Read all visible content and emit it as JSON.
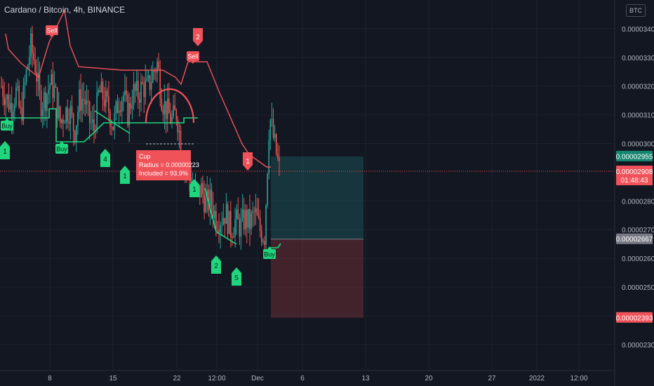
{
  "header": {
    "title": "Cardano / Bitcoin, 4h, BINANCE",
    "currency_button": "BTC"
  },
  "price_tags": {
    "target": "0.00002955",
    "current": "0.00002908",
    "countdown": "01:48:43",
    "entry": "0.00002667",
    "stop": "0.00002393"
  },
  "annotation": {
    "line1": "Cup",
    "line2": "Radius = 0.00000223",
    "line3": "Included = 93.9%"
  },
  "colors": {
    "background": "#131722",
    "bull": "#26a69a",
    "bear": "#ef5350",
    "buy_signal": "#1fd67e",
    "sell_signal": "#f0525a",
    "grid": "#1e2230",
    "text": "#b2b5be"
  },
  "chart_data": {
    "type": "candlestick",
    "title": "Cardano / Bitcoin, 4h, BINANCE",
    "y_axis": {
      "range": [
        2.24e-05,
        3.49e-05
      ],
      "ticks": [
        "0.00003400",
        "0.00003300",
        "0.00003200",
        "0.00003100",
        "0.00003000",
        "0.00002800",
        "0.00002700",
        "0.00002600",
        "0.00002500",
        "0.00002400",
        "0.00002300"
      ]
    },
    "x_axis": {
      "ticks": [
        "8",
        "15",
        "22",
        "12:00",
        "Dec",
        "6",
        "13",
        "20",
        "27",
        "2022",
        "12:00"
      ]
    },
    "close_path": [
      3.2e-05,
      3.16e-05,
      3.13e-05,
      3.18e-05,
      3.09e-05,
      3.23e-05,
      3.34e-05,
      3.27e-05,
      3.14e-05,
      3.16e-05,
      3.21e-05,
      3.18e-05,
      3.07e-05,
      3.11e-05,
      3.12e-05,
      3.04e-05,
      3.15e-05,
      3.16e-05,
      3.08e-05,
      3.05e-05,
      3.18e-05,
      3.16e-05,
      3.12e-05,
      3.06e-05,
      3.15e-05,
      3.17e-05,
      3.1e-05,
      3.18e-05,
      3.17e-05,
      3.2e-05,
      3.19e-05,
      3.24e-05,
      3.28e-05,
      3.15e-05,
      3.11e-05,
      3.08e-05,
      3.11e-05,
      2.97e-05,
      2.92e-05,
      2.86e-05,
      2.82e-05,
      2.84e-05,
      2.79e-05,
      2.8e-05,
      2.74e-05,
      2.74e-05,
      2.76e-05,
      2.7e-05,
      2.73e-05,
      2.71e-05,
      2.74e-05,
      2.72e-05,
      2.76e-05,
      2.7e-05,
      2.68e-05,
      3.1e-05,
      3e-05,
      2.91e-05
    ],
    "signals": [
      {
        "label": "Buy",
        "type": "buy"
      },
      {
        "label": "Buy",
        "type": "buy"
      },
      {
        "label": "Buy",
        "type": "buy"
      },
      {
        "label": "Sell",
        "type": "sell"
      },
      {
        "label": "Sell",
        "type": "sell"
      }
    ],
    "markers": [
      {
        "label": "1",
        "type": "buy"
      },
      {
        "label": "4",
        "type": "buy"
      },
      {
        "label": "1",
        "type": "buy"
      },
      {
        "label": "1",
        "type": "buy"
      },
      {
        "label": "2",
        "type": "buy"
      },
      {
        "label": "5",
        "type": "buy"
      },
      {
        "label": "2",
        "type": "sell"
      },
      {
        "label": "1",
        "type": "sell"
      }
    ],
    "position": {
      "target": 2.955e-05,
      "entry": 2.667e-05,
      "stop": 2.393e-05
    },
    "cup": {
      "radius": 2.23e-06,
      "included_pct": 93.9
    }
  }
}
